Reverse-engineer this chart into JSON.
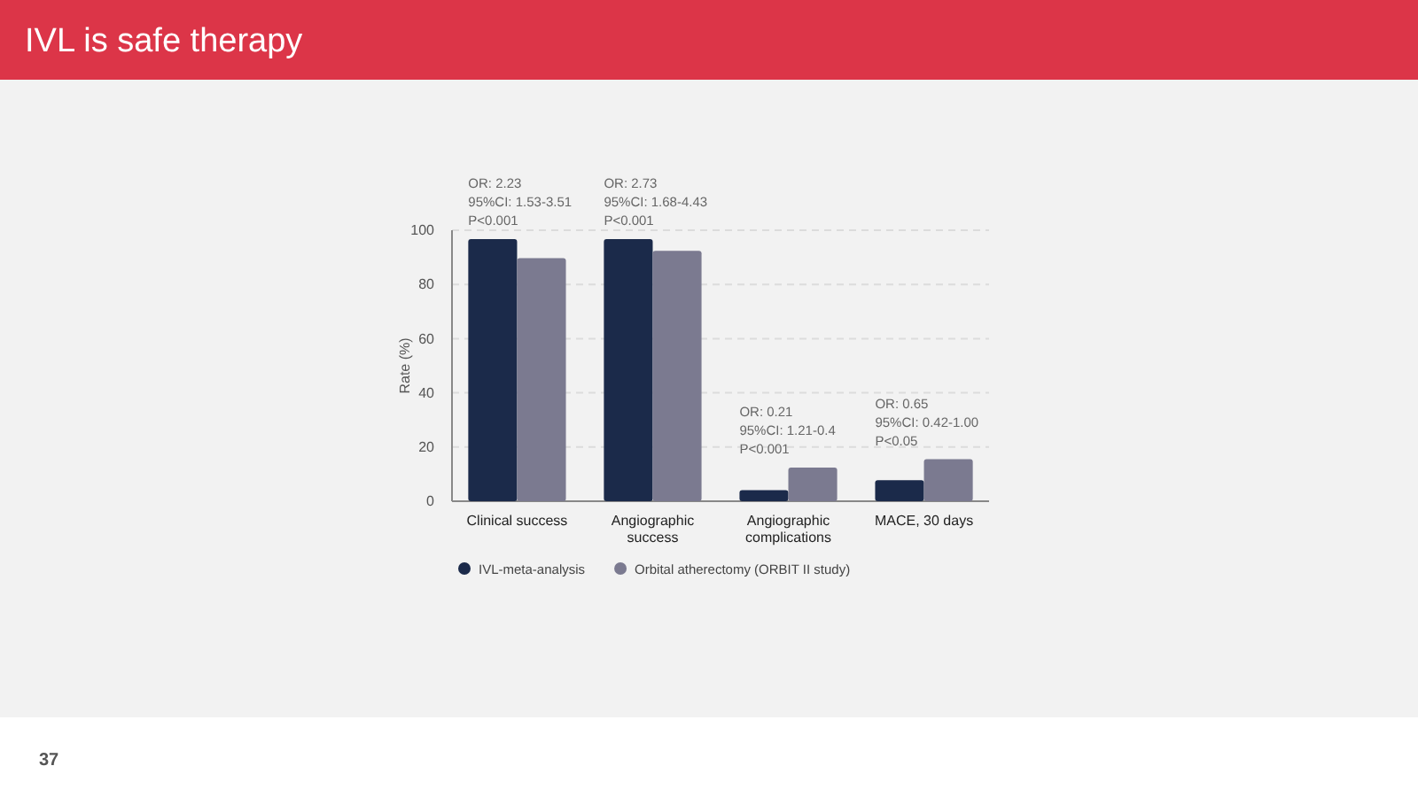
{
  "chart_data": {
    "type": "bar",
    "title": "IVL is safe therapy",
    "ylabel": "Rate (%)",
    "categories": [
      "Clinical success",
      "Angiographic success",
      "Angiographic complications",
      "MACE, 30 days"
    ],
    "series": [
      {
        "name": "IVL-meta-analysis",
        "color": "#1b2a4a",
        "values": [
          96.7,
          96.7,
          4.1,
          7.8
        ]
      },
      {
        "name": "Orbital atherectomy (ORBIT II study)",
        "color": "#7b7a90",
        "values": [
          89.7,
          92.4,
          12.4,
          15.5
        ]
      }
    ],
    "ylim": [
      0,
      100
    ],
    "yticks": [
      0,
      20,
      40,
      60,
      80,
      100
    ],
    "grid": "y",
    "legend": "bottom",
    "annotations": [
      {
        "text": "OR: 2.23\n95%CI: 1.53-3.51\nP<0.001",
        "x": "Clinical success",
        "y": 96.7
      },
      {
        "text": "OR: 2.73\n95%CI: 1.68-4.43\nP<0.001",
        "x": "Angiographic success",
        "y": 96.7
      },
      {
        "text": "OR: 0.21\n95%CI: 1.21-0.4\nP<0.001",
        "x": "Angiographic complications",
        "y": 12.4
      },
      {
        "text": "OR: 0.65\n95%CI: 0.42-1.00\nP<0.05",
        "x": "MACE, 30 days",
        "y": 15.5
      },
      "37"
    ]
  }
}
